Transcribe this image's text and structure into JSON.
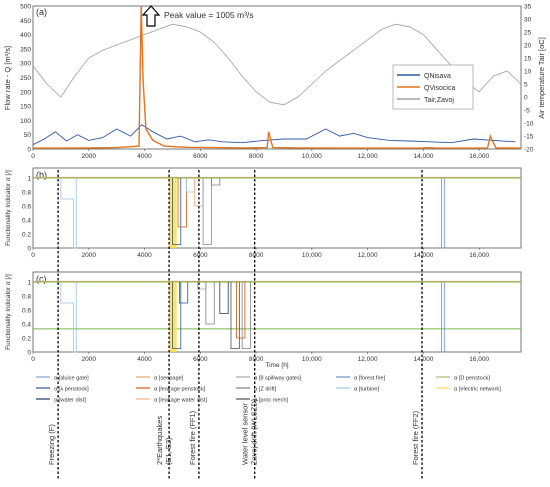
{
  "figure": {
    "colors": {
      "Nisava": "#2e58a6",
      "Visocica": "#e2731f",
      "Tair": "#a0a0a0",
      "green": "#79b94a",
      "yellow": "#ffe13a",
      "event": "#000000"
    }
  },
  "chart_data": [
    {
      "type": "line",
      "panel_label": "(a)",
      "ylabel": "Flow rate - Q [m³/s]",
      "y2label": "Air temperature Tair [oC]",
      "ylim": [
        0,
        1005
      ],
      "y2lim": [
        -20,
        35
      ],
      "yticks": [
        "0",
        "50",
        "100",
        "150",
        "200",
        "250",
        "300",
        "350",
        "400",
        "450",
        "500"
      ],
      "y2ticks": [
        "-20",
        "-15",
        "-10",
        "-5",
        "0",
        "5",
        "10",
        "15",
        "20",
        "25",
        "30",
        "35"
      ],
      "xlim": [
        0,
        17500
      ],
      "xticks": [
        "0",
        "2000",
        "4000",
        "6000",
        "8000",
        "10,000",
        "12,000",
        "14,000",
        "16,000"
      ],
      "annotation": "Peak value = 1005 m³/s",
      "legend": [
        "QNisava",
        "QVisocica",
        "Tair,Zavoj"
      ],
      "legend_position": "right",
      "series": [
        {
          "name": "QNisava",
          "x": [
            0,
            400,
            800,
            1200,
            1600,
            2000,
            2500,
            3000,
            3500,
            3900,
            4300,
            4800,
            5300,
            5800,
            6300,
            6800,
            7500,
            8300,
            9000,
            9800,
            10500,
            11000,
            11500,
            12000,
            12800,
            13500,
            14200,
            15000,
            15800,
            16500,
            17300
          ],
          "values": [
            15,
            35,
            60,
            28,
            50,
            30,
            40,
            70,
            45,
            85,
            60,
            35,
            45,
            25,
            32,
            25,
            22,
            30,
            35,
            35,
            70,
            45,
            55,
            40,
            30,
            28,
            25,
            22,
            35,
            30,
            25
          ]
        },
        {
          "name": "QVisocica",
          "x": [
            0,
            1000,
            2000,
            3000,
            3800,
            3880,
            3950,
            4050,
            4300,
            4700,
            5500,
            6500,
            7500,
            8400,
            8450,
            8600,
            9500,
            11000,
            12500,
            14000,
            14200,
            14400,
            15500,
            16300,
            16400,
            16600,
            17500
          ],
          "values": [
            3,
            3,
            4,
            5,
            10,
            1005,
            240,
            70,
            30,
            10,
            6,
            5,
            4,
            5,
            60,
            5,
            4,
            3,
            3,
            4,
            5,
            4,
            3,
            3,
            45,
            4,
            3
          ]
        },
        {
          "name": "Tair,Zavoj",
          "x": [
            0,
            500,
            1000,
            1500,
            2000,
            2500,
            3000,
            3500,
            4000,
            4500,
            5000,
            5500,
            6000,
            6500,
            7000,
            7500,
            8000,
            8500,
            9000,
            9500,
            10000,
            10500,
            11000,
            11500,
            12000,
            12500,
            13000,
            13500,
            14000,
            14500,
            15000,
            15500,
            16000,
            16500,
            17000,
            17500
          ],
          "values": [
            12,
            5,
            0,
            8,
            15,
            18,
            20,
            22,
            24,
            26,
            28,
            27,
            25,
            21,
            15,
            8,
            2,
            -2,
            -3,
            0,
            5,
            10,
            14,
            18,
            22,
            26,
            28,
            27,
            24,
            18,
            12,
            6,
            2,
            8,
            10,
            5
          ]
        }
      ]
    },
    {
      "type": "line",
      "panel_label": "(b)",
      "ylabel": "Functionality indicator α [/]",
      "ylim": [
        0,
        1
      ],
      "yticks": [
        "0",
        "0.2",
        "0.4",
        "0.6",
        "0.8",
        "1"
      ],
      "xlim": [
        0,
        17500
      ],
      "xticks": [
        "0",
        "2000",
        "4000",
        "6000",
        "8000",
        "10,000",
        "12,000",
        "14,000",
        "16,000"
      ]
    },
    {
      "type": "line",
      "panel_label": "(c)",
      "ylabel": "Functionality indicator α [/]",
      "ylim": [
        0,
        1
      ],
      "yticks": [
        "0",
        "0.2",
        "0.4",
        "0.6",
        "0.8",
        "1"
      ],
      "xlim": [
        0,
        17500
      ],
      "xlabel": "Time [h]",
      "xticks": [
        "0",
        "2000",
        "4000",
        "6000",
        "8000",
        "10,000",
        "12,000",
        "14,000",
        "16,000"
      ]
    }
  ],
  "legend_items": [
    {
      "label": "α [sluice gate]",
      "color": "#7fa6d6"
    },
    {
      "label": "α [seepage]",
      "color": "#e7a873"
    },
    {
      "label": "α [8 spillway gates]",
      "color": "#a8a8a8"
    },
    {
      "label": "α [forest fire]",
      "color": "#6e8fcf"
    },
    {
      "label": "α [D penstock]",
      "color": "#a3c36a"
    },
    {
      "label": "α [λ penstock]",
      "color": "#2f5597"
    },
    {
      "label": "α [leakage penstock]",
      "color": "#c55a11"
    },
    {
      "label": "α [Z drift]",
      "color": "#7f7f7f"
    },
    {
      "label": "α [turbine]",
      "color": "#9dc3e6"
    },
    {
      "label": "α [electric network]",
      "color": "#ffd966"
    },
    {
      "label": "α [water dist]",
      "color": "#203864"
    },
    {
      "label": "α [leakage water dist]",
      "color": "#f4b183"
    },
    {
      "label": "α [proc mech]",
      "color": "#4d4d4d"
    }
  ],
  "events": [
    {
      "label": "Freezing (F)",
      "x": 900
    },
    {
      "label": "2*Earthquakes (E1, E2)",
      "x": 4880
    },
    {
      "label": "Forest fire (FF1)",
      "x": 5950
    },
    {
      "label": "Water level sensor Zavoj drift (WLSZD)",
      "x": 7950
    },
    {
      "label": "Forest fire (FF2)",
      "x": 13950
    }
  ]
}
